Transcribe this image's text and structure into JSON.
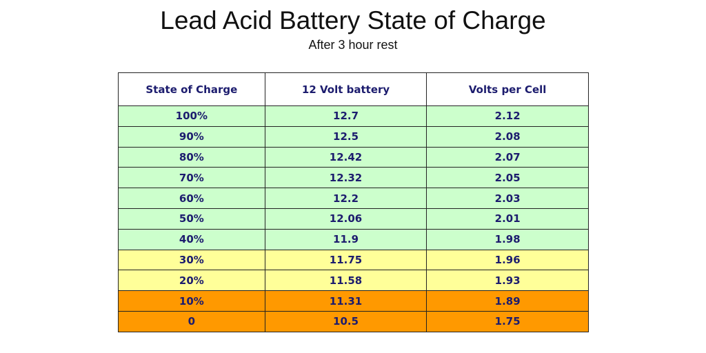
{
  "header": {
    "title": "Lead Acid Battery State of Charge",
    "subtitle": "After 3 hour rest"
  },
  "table": {
    "columns": [
      "State of Charge",
      "12 Volt battery",
      "Volts per Cell"
    ],
    "rows": [
      [
        "100%",
        "12.7",
        "2.12"
      ],
      [
        "90%",
        "12.5",
        "2.08"
      ],
      [
        "80%",
        "12.42",
        "2.07"
      ],
      [
        "70%",
        "12.32",
        "2.05"
      ],
      [
        "60%",
        "12.2",
        "2.03"
      ],
      [
        "50%",
        "12.06",
        "2.01"
      ],
      [
        "40%",
        "11.9",
        "1.98"
      ],
      [
        "30%",
        "11.75",
        "1.96"
      ],
      [
        "20%",
        "11.58",
        "1.93"
      ],
      [
        "10%",
        "11.31",
        "1.89"
      ],
      [
        "0",
        "10.5",
        "1.75"
      ]
    ]
  }
}
